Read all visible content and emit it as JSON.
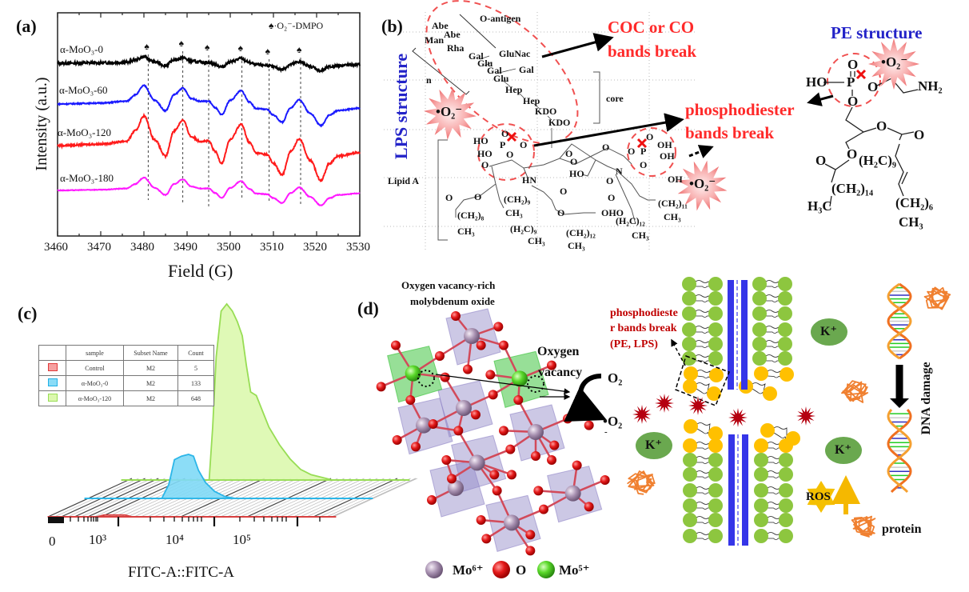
{
  "panel_a": {
    "label": "(a)",
    "legend": "♠·O₂⁻-DMPO",
    "marker_glyph": "♠"
  },
  "panel_b": {
    "label": "(b)",
    "lps_title": "LPS structure",
    "pe_title": "PE structure",
    "o_antigen": "O-antigen",
    "n": "n",
    "core": "core",
    "lipid_a": "Lipid A",
    "sugars": [
      "Abe",
      "Abe",
      "Man",
      "Rha",
      "Gal",
      "GluNac",
      "Glu",
      "Gal",
      "Gal",
      "Glu",
      "Hep",
      "Hep",
      "KDO",
      "KDO"
    ],
    "coc_line1": "COC or CO",
    "coc_line2": "bands break",
    "phos_line1": "phosphodiester",
    "phos_line2": "bands  break",
    "radical": "•O₂⁻",
    "lipid_a_groups": [
      "HO",
      "HO",
      "P",
      "O",
      "O",
      "O",
      "O",
      "O",
      "O",
      "O",
      "HN",
      "O",
      "HO",
      "N",
      "O",
      "O",
      "OHO",
      "O",
      "O",
      "O",
      "(CH₂)₉",
      "CH₃",
      "(CH₂)₈",
      "CH₃",
      "(H₂C)₉",
      "CH₃",
      "(CH₂)₁₂",
      "CH₃",
      "(H₂C)₁₂",
      "CH₃",
      "O",
      "P",
      "O",
      "OH",
      "OH",
      "O",
      "OH",
      "(CH₂)₁₁",
      "CH₃"
    ],
    "pe_groups": [
      "O",
      "HO",
      "P",
      "O",
      "NH₂",
      "O",
      "O",
      "O",
      "O",
      "O",
      "(H₂C)₉",
      "(CH₂)₁₄",
      "H₃C",
      "(CH₂)₆",
      "CH₃"
    ]
  },
  "panel_c": {
    "label": "(c)"
  },
  "panel_d": {
    "label": "(d)",
    "title_line1": "Oxygen vacancy-rich",
    "title_line2": "molybdenum oxide",
    "vacancy_line1": "Oxygen",
    "vacancy_line2": "vacancy",
    "o2": "O₂",
    "o2_radical": "•O₂",
    "o2_radical_charge": "-",
    "phos_line1": "phosphodieste",
    "phos_line2": "r bands break",
    "phos_line3": "(PE, LPS)",
    "k_ion": "K⁺",
    "ros": "ROS",
    "protein": "protein",
    "dna_damage": "DNA  damage",
    "legend": [
      {
        "label": "Mo⁶⁺",
        "color": "#a08aaa"
      },
      {
        "label": "O",
        "color": "#e01818"
      },
      {
        "label": "Mo⁵⁺",
        "color": "#55dd22"
      }
    ]
  },
  "chart_data": [
    {
      "type": "line",
      "title": "",
      "xlabel": "Field (G)",
      "ylabel": "Intensity (a.u.)",
      "xlim": [
        3460,
        3530
      ],
      "ylim": [
        -1.14,
        4.44
      ],
      "xticks": [
        3460,
        3470,
        3480,
        3490,
        3500,
        3510,
        3520,
        3530
      ],
      "marker_positions": [
        3481,
        3489,
        3495,
        3502.7,
        3509,
        3516.3
      ],
      "shape": {
        "x": [
          3460,
          3470,
          3476,
          3478,
          3480,
          3482.5,
          3485,
          3487,
          3489,
          3491,
          3493,
          3495,
          3496.5,
          3498,
          3500,
          3502.5,
          3504.5,
          3506,
          3508.5,
          3510,
          3512,
          3514,
          3516,
          3518.5,
          3521,
          3523,
          3525,
          3530
        ],
        "y": [
          0,
          0.05,
          0.15,
          0.5,
          1.0,
          0.2,
          -0.36,
          0.5,
          0.86,
          0.3,
          0.15,
          0.15,
          -0.2,
          -0.59,
          0.2,
          0.72,
          0.1,
          -0.25,
          -0.3,
          -0.6,
          -0.99,
          -0.2,
          0.23,
          -0.5,
          -1.17,
          -0.6,
          -0.35,
          -0.23
        ]
      },
      "series": [
        {
          "name": "α-MoO₃-0",
          "color": "#000000",
          "offset": 3.18,
          "amplitude": 0.16
        },
        {
          "name": "α-MoO₃-60",
          "color": "#1a1aff",
          "offset": 2.16,
          "amplitude": 0.46
        },
        {
          "name": "α-MoO₃-120",
          "color": "#ff1a1a",
          "offset": 1.12,
          "amplitude": 0.74
        },
        {
          "name": "α-MoO₃-180",
          "color": "#ff1aff",
          "offset": 0.0,
          "amplitude": 0.32
        }
      ]
    },
    {
      "type": "area",
      "title": "",
      "xlabel": "FITC-A::FITC-A",
      "ylabel": "",
      "x_scale": "log10",
      "xlim": [
        2.2,
        6.3
      ],
      "xtick_labels": [
        "0",
        "10³",
        "10⁴",
        "10⁵"
      ],
      "count_units": "normalized (peak = 100)",
      "table": {
        "headers": [
          "",
          "sample",
          "Subset Name",
          "Count"
        ],
        "rows": [
          {
            "sample": "Control",
            "subset": "M2",
            "count": "5",
            "color": "#f06a6a"
          },
          {
            "sample": "α-MoO₃-0",
            "subset": "M2",
            "count": "133",
            "color": "#38c0ee"
          },
          {
            "sample": "α-MoO₃-120",
            "subset": "M2",
            "count": "648",
            "color": "#a8e860"
          }
        ]
      },
      "series": [
        {
          "name": "Control",
          "stroke": "#d84040",
          "fill": "none",
          "points": [
            [
              2.9,
              0
            ],
            [
              3.0,
              1
            ],
            [
              3.3,
              1
            ],
            [
              3.4,
              0
            ]
          ]
        },
        {
          "name": "α-MoO₃-0",
          "stroke": "#2cb6e8",
          "fill": "#80d9f6",
          "points": [
            [
              3.3,
              0
            ],
            [
              3.4,
              8
            ],
            [
              3.48,
              22
            ],
            [
              3.58,
              24
            ],
            [
              3.68,
              25
            ],
            [
              3.75,
              24
            ],
            [
              3.82,
              16
            ],
            [
              3.92,
              9
            ],
            [
              4.05,
              4
            ],
            [
              4.2,
              1
            ],
            [
              4.35,
              0
            ]
          ]
        },
        {
          "name": "α-MoO₃-120",
          "stroke": "#98dd55",
          "fill": "#dcf8ae",
          "points": [
            [
              3.45,
              0
            ],
            [
              3.5,
              30
            ],
            [
              3.55,
              70
            ],
            [
              3.62,
              96
            ],
            [
              3.7,
              100
            ],
            [
              3.78,
              96
            ],
            [
              3.85,
              90
            ],
            [
              3.92,
              82
            ],
            [
              3.98,
              65
            ],
            [
              4.04,
              50
            ],
            [
              4.12,
              48
            ],
            [
              4.2,
              40
            ],
            [
              4.3,
              30
            ],
            [
              4.45,
              20
            ],
            [
              4.6,
              12
            ],
            [
              4.75,
              6
            ],
            [
              4.9,
              3
            ],
            [
              5.1,
              1
            ],
            [
              5.2,
              0
            ]
          ]
        }
      ]
    }
  ]
}
